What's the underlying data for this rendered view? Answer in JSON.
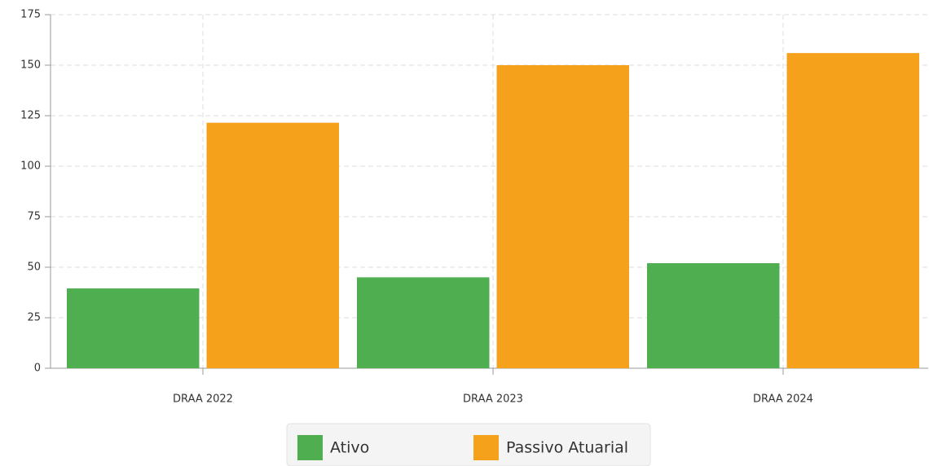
{
  "chart_data": {
    "type": "bar",
    "categories": [
      "DRAA 2022",
      "DRAA 2023",
      "DRAA 2024"
    ],
    "series": [
      {
        "name": "Ativo",
        "color": "#4fae4f",
        "values": [
          39.5,
          45,
          52
        ]
      },
      {
        "name": "Passivo Atuarial",
        "color": "#f5a11c",
        "values": [
          121.5,
          150,
          156
        ]
      }
    ],
    "ylim": [
      0,
      175
    ],
    "yticks": [
      0,
      25,
      50,
      75,
      100,
      125,
      150,
      175
    ],
    "grid": true,
    "legend": "bottom"
  }
}
